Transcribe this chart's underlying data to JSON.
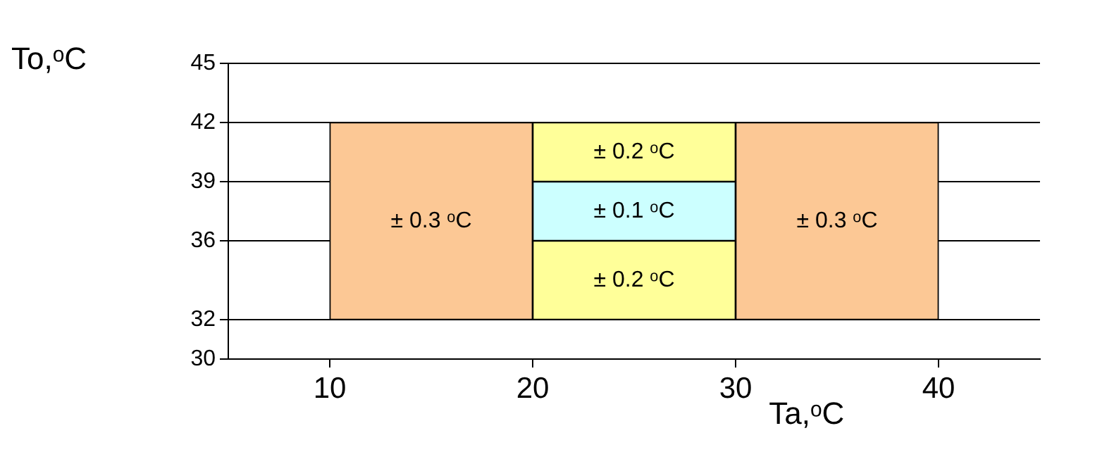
{
  "chart_data": {
    "type": "bar",
    "xlabel": "Ta,ᵒC",
    "ylabel": "To,ᵒC",
    "x": [
      15,
      25,
      35
    ],
    "series": [
      {
        "colors": [
          "#fcc895",
          "#ffff99",
          "#fcc895"
        ],
        "values": [
          10,
          4,
          10
        ],
        "base": [
          32,
          32,
          32
        ]
      },
      {
        "color": "#ccffff",
        "values": [
          null,
          3,
          null
        ],
        "base": [
          null,
          36,
          null
        ]
      },
      {
        "color": "#ffff99",
        "values": [
          null,
          3,
          null
        ],
        "base": [
          null,
          39,
          null
        ]
      }
    ],
    "annotations": [
      "± 0.3 ᵒC",
      "± 0.2 ᵒC",
      "± 0.3 ᵒC",
      "± 0.1 ᵒC",
      "± 0.2 ᵒC"
    ],
    "xlim": [
      5,
      45
    ],
    "xticks": [
      10,
      20,
      30,
      40
    ],
    "ylim": [
      30,
      45
    ],
    "yticks": [
      30,
      32,
      36,
      39,
      42,
      45
    ],
    "grid": "y",
    "legend": false
  }
}
